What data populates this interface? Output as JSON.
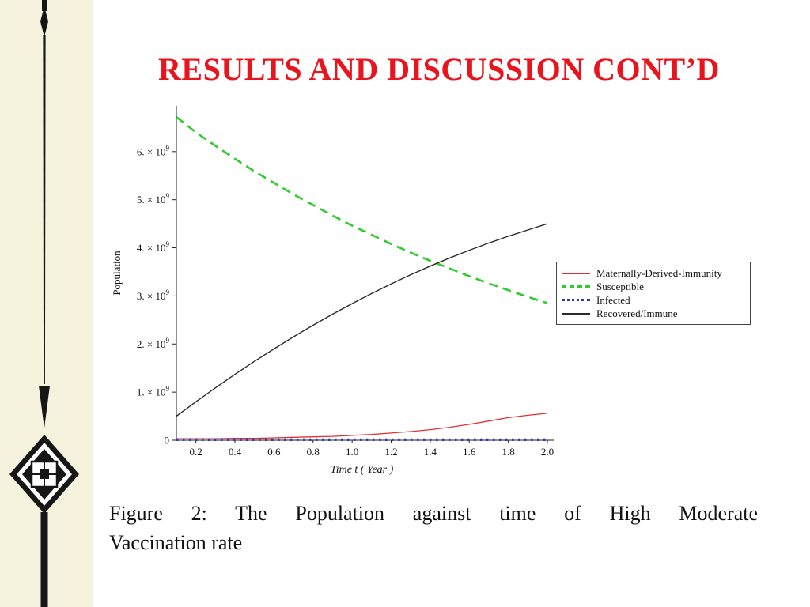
{
  "slide": {
    "title": "RESULTS AND DISCUSSION CONT’D",
    "title_color": "#e8141e",
    "caption_line1": "Figure 2:  The Population against time of High Moderate",
    "caption_line2": "Vaccination rate"
  },
  "decoration": {
    "band_color": "#f5f2dd",
    "ornament_color": "#161616",
    "ornament_name": "vertical-spear-and-diamond-ornament"
  },
  "chart_data": {
    "type": "line",
    "title": "",
    "xlabel": "Time t ( Year )",
    "ylabel": "Population",
    "y_exponent": "9",
    "xlim": [
      0.1,
      2.0
    ],
    "ylim_1e9": [
      0,
      6.95
    ],
    "x_ticks": [
      0.2,
      0.4,
      0.6,
      0.8,
      1.0,
      1.2,
      1.4,
      1.6,
      1.8,
      2.0
    ],
    "y_ticks_1e9": [
      0,
      1,
      2,
      3,
      4,
      5,
      6
    ],
    "grid": false,
    "legend_position": "right",
    "x": [
      0.1,
      0.2,
      0.3,
      0.4,
      0.5,
      0.6,
      0.7,
      0.8,
      0.9,
      1.0,
      1.1,
      1.2,
      1.3,
      1.4,
      1.5,
      1.6,
      1.7,
      1.8,
      1.9,
      2.0
    ],
    "series": [
      {
        "name": "Maternally-Derived-Immunity",
        "color": "#e03131",
        "line_style": "solid",
        "width": 1.3,
        "values_1e9": [
          0.03,
          0.03,
          0.03,
          0.04,
          0.04,
          0.05,
          0.06,
          0.07,
          0.08,
          0.1,
          0.12,
          0.15,
          0.18,
          0.22,
          0.27,
          0.33,
          0.4,
          0.47,
          0.52,
          0.56
        ]
      },
      {
        "name": "Susceptible",
        "color": "#2ecc2e",
        "line_style": "dashed",
        "width": 2.6,
        "values_1e9": [
          6.72,
          6.4,
          6.12,
          5.85,
          5.59,
          5.35,
          5.11,
          4.89,
          4.67,
          4.46,
          4.27,
          4.08,
          3.9,
          3.73,
          3.57,
          3.41,
          3.26,
          3.12,
          2.98,
          2.85
        ]
      },
      {
        "name": "Infected",
        "color": "#2736c4",
        "line_style": "dotted",
        "width": 3.2,
        "values_1e9": [
          0.01,
          0.01,
          0.01,
          0.01,
          0.01,
          0.01,
          0.01,
          0.01,
          0.01,
          0.01,
          0.01,
          0.01,
          0.01,
          0.01,
          0.01,
          0.01,
          0.01,
          0.01,
          0.01,
          0.01
        ]
      },
      {
        "name": "Recovered/Immune",
        "color": "#2b2b2b",
        "line_style": "solid",
        "width": 1.4,
        "values_1e9": [
          0.5,
          0.8,
          1.09,
          1.37,
          1.64,
          1.9,
          2.15,
          2.39,
          2.62,
          2.84,
          3.05,
          3.25,
          3.44,
          3.62,
          3.79,
          3.95,
          4.1,
          4.24,
          4.37,
          4.5
        ]
      }
    ]
  }
}
